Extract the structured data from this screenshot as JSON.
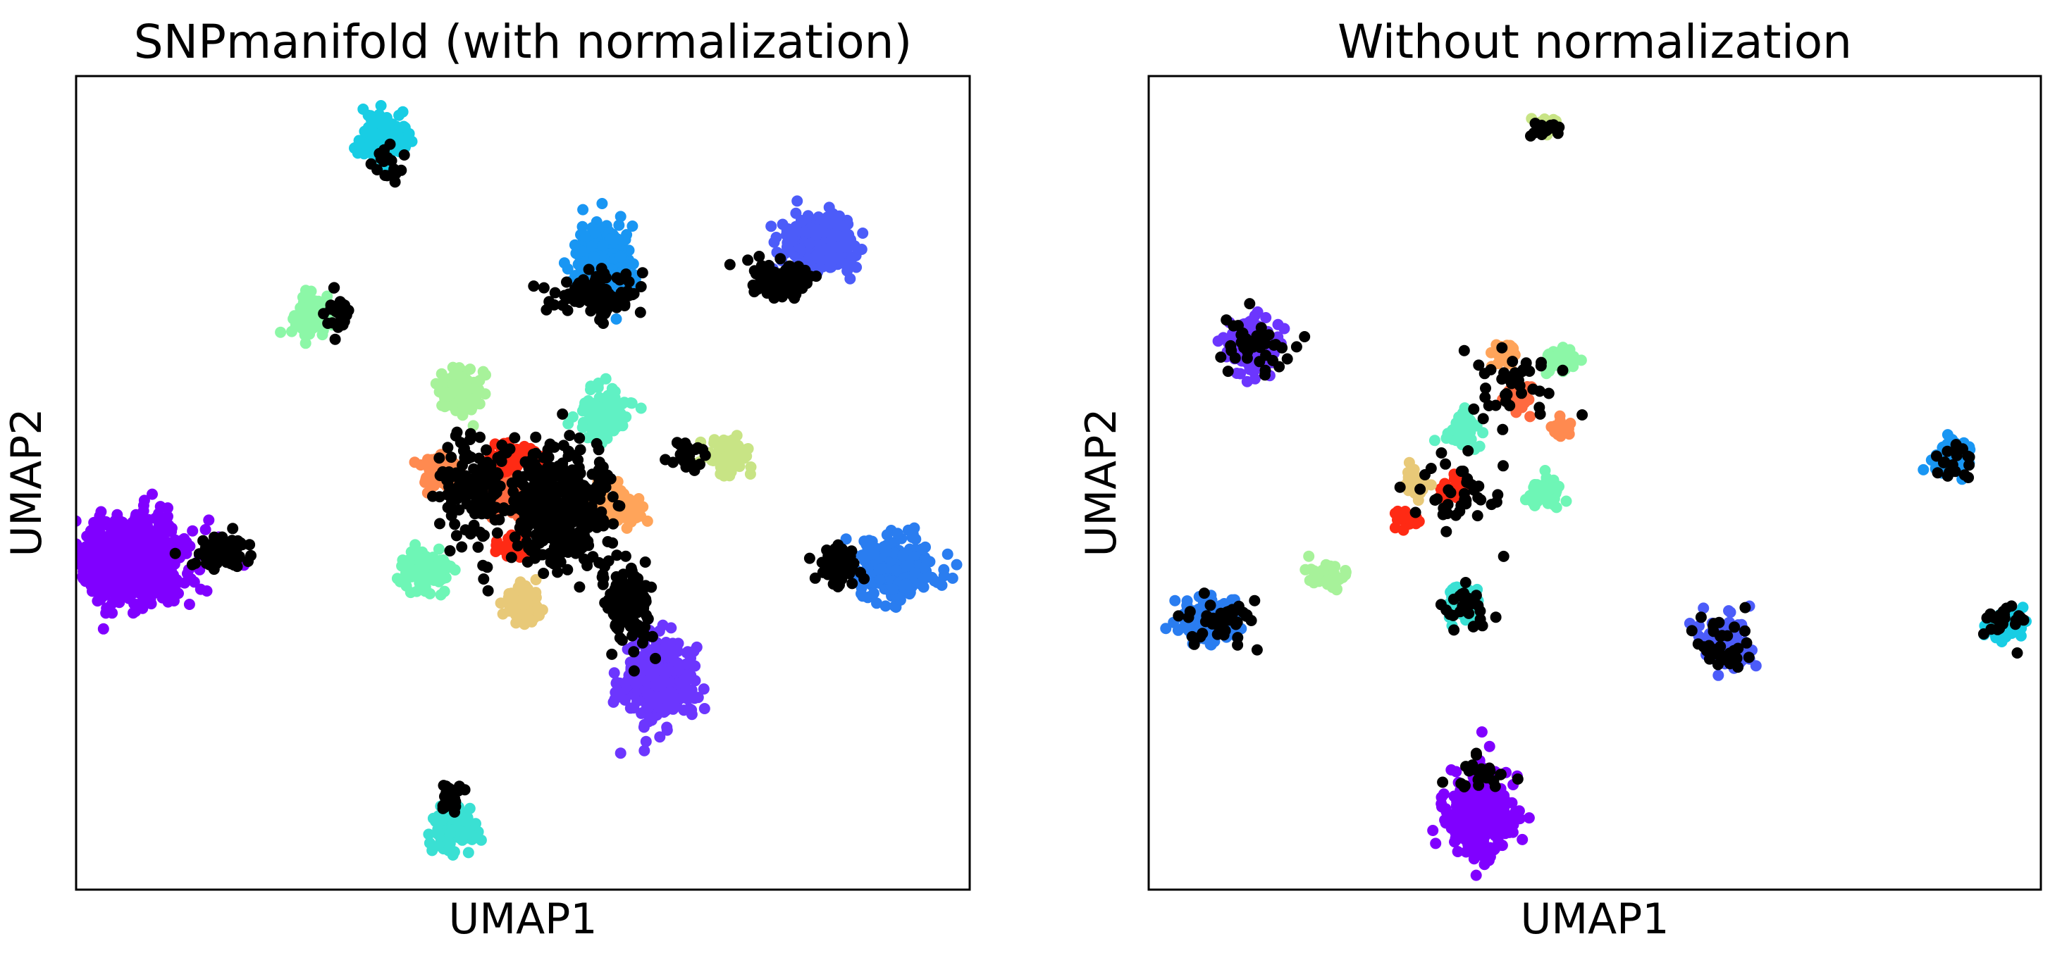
{
  "chart_data": [
    {
      "type": "scatter",
      "title": "SNPmanifold (with normalization)",
      "xlabel": "UMAP1",
      "ylabel": "UMAP2",
      "xlim": [
        0,
        100
      ],
      "ylim": [
        0,
        100
      ],
      "xticks": "none",
      "yticks": "none",
      "grid": false,
      "legend": "none",
      "clusters": [
        {
          "color": "#8000ff",
          "x": 6.5,
          "y": 40.5,
          "rx": 6.0,
          "ry": 5.0,
          "n": 700
        },
        {
          "color": "#6c36fe",
          "x": 65.0,
          "y": 25.5,
          "rx": 4.0,
          "ry": 5.0,
          "n": 300
        },
        {
          "color": "#1996f3",
          "x": 59.0,
          "y": 77.5,
          "rx": 3.0,
          "ry": 4.5,
          "n": 250
        },
        {
          "color": "#4c5cf9",
          "x": 83.0,
          "y": 79.5,
          "rx": 4.0,
          "ry": 3.5,
          "n": 250
        },
        {
          "color": "#2a7df0",
          "x": 91.5,
          "y": 39.5,
          "rx": 4.5,
          "ry": 3.5,
          "n": 250
        },
        {
          "color": "#18cde4",
          "x": 34.5,
          "y": 92.5,
          "rx": 3.0,
          "ry": 3.0,
          "n": 150
        },
        {
          "color": "#3ae0d3",
          "x": 42.0,
          "y": 7.5,
          "rx": 2.5,
          "ry": 3.0,
          "n": 120
        },
        {
          "color": "#8cf7a7",
          "x": 26.5,
          "y": 70.5,
          "rx": 2.2,
          "ry": 2.5,
          "n": 90
        },
        {
          "color": "#a7f29a",
          "x": 43.0,
          "y": 61.5,
          "rx": 2.5,
          "ry": 2.8,
          "n": 120
        },
        {
          "color": "#60f1c4",
          "x": 59.0,
          "y": 58.5,
          "rx": 2.8,
          "ry": 3.0,
          "n": 140
        },
        {
          "color": "#c8e485",
          "x": 73.0,
          "y": 53.5,
          "rx": 2.5,
          "ry": 2.0,
          "n": 90
        },
        {
          "color": "#6ef6b6",
          "x": 39.0,
          "y": 39.5,
          "rx": 2.5,
          "ry": 2.5,
          "n": 100
        },
        {
          "color": "#e8c978",
          "x": 50.0,
          "y": 35.0,
          "rx": 2.0,
          "ry": 2.5,
          "n": 90
        },
        {
          "color": "#ff8a50",
          "x": 40.5,
          "y": 51.5,
          "rx": 2.0,
          "ry": 2.0,
          "n": 70
        },
        {
          "color": "#ff6a40",
          "x": 48.0,
          "y": 48.5,
          "rx": 2.5,
          "ry": 2.0,
          "n": 90
        },
        {
          "color": "#ffa45a",
          "x": 60.5,
          "y": 47.0,
          "rx": 2.5,
          "ry": 2.0,
          "n": 90
        },
        {
          "color": "#ff2a14",
          "x": 49.0,
          "y": 53.0,
          "rx": 2.5,
          "ry": 2.0,
          "n": 70
        },
        {
          "color": "#ff2a14",
          "x": 49.0,
          "y": 42.0,
          "rx": 2.0,
          "ry": 1.5,
          "n": 40
        },
        {
          "color": "#000000",
          "x": 54.0,
          "y": 47.0,
          "rx": 5.0,
          "ry": 7.0,
          "n": 450
        },
        {
          "color": "#000000",
          "x": 62.0,
          "y": 35.0,
          "rx": 3.0,
          "ry": 5.0,
          "n": 120
        },
        {
          "color": "#000000",
          "x": 58.0,
          "y": 73.0,
          "rx": 5.0,
          "ry": 3.0,
          "n": 100
        },
        {
          "color": "#000000",
          "x": 79.0,
          "y": 75.0,
          "rx": 3.5,
          "ry": 2.5,
          "n": 90
        },
        {
          "color": "#000000",
          "x": 85.0,
          "y": 40.0,
          "rx": 2.5,
          "ry": 2.5,
          "n": 80
        },
        {
          "color": "#000000",
          "x": 16.5,
          "y": 41.5,
          "rx": 3.0,
          "ry": 2.0,
          "n": 70
        },
        {
          "color": "#000000",
          "x": 42.0,
          "y": 11.5,
          "rx": 1.5,
          "ry": 2.0,
          "n": 25
        },
        {
          "color": "#000000",
          "x": 29.5,
          "y": 71.0,
          "rx": 2.0,
          "ry": 3.0,
          "n": 25
        },
        {
          "color": "#000000",
          "x": 35.0,
          "y": 89.5,
          "rx": 1.5,
          "ry": 2.5,
          "n": 20
        },
        {
          "color": "#000000",
          "x": 68.5,
          "y": 53.5,
          "rx": 2.5,
          "ry": 2.0,
          "n": 25
        },
        {
          "color": "#000000",
          "x": 44.5,
          "y": 49.0,
          "rx": 4.0,
          "ry": 7.0,
          "n": 140
        }
      ]
    },
    {
      "type": "scatter",
      "title": "Without normalization",
      "xlabel": "UMAP1",
      "ylabel": "UMAP2",
      "xlim": [
        0,
        100
      ],
      "ylim": [
        0,
        100
      ],
      "xticks": "none",
      "yticks": "none",
      "grid": false,
      "legend": "none",
      "clusters": [
        {
          "color": "#c8e485",
          "x": 44.5,
          "y": 94.0,
          "rx": 1.2,
          "ry": 1.2,
          "n": 30
        },
        {
          "color": "#6c36fe",
          "x": 11.5,
          "y": 67.0,
          "rx": 3.0,
          "ry": 3.0,
          "n": 200
        },
        {
          "color": "#8cf7a7",
          "x": 46.0,
          "y": 65.0,
          "rx": 2.0,
          "ry": 1.5,
          "n": 50
        },
        {
          "color": "#ffa45a",
          "x": 40.0,
          "y": 66.0,
          "rx": 1.5,
          "ry": 1.5,
          "n": 30
        },
        {
          "color": "#ff6a40",
          "x": 41.5,
          "y": 60.5,
          "rx": 1.5,
          "ry": 1.5,
          "n": 30
        },
        {
          "color": "#ff8a50",
          "x": 46.0,
          "y": 56.5,
          "rx": 1.0,
          "ry": 1.2,
          "n": 20
        },
        {
          "color": "#60f1c4",
          "x": 35.5,
          "y": 56.5,
          "rx": 2.0,
          "ry": 2.0,
          "n": 60
        },
        {
          "color": "#ff2a14",
          "x": 34.5,
          "y": 49.0,
          "rx": 1.5,
          "ry": 1.5,
          "n": 30
        },
        {
          "color": "#e8c978",
          "x": 30.0,
          "y": 50.0,
          "rx": 1.5,
          "ry": 1.5,
          "n": 30
        },
        {
          "color": "#ff2a14",
          "x": 29.0,
          "y": 45.5,
          "rx": 1.2,
          "ry": 1.5,
          "n": 30
        },
        {
          "color": "#6ef6b6",
          "x": 44.5,
          "y": 48.5,
          "rx": 1.8,
          "ry": 2.0,
          "n": 50
        },
        {
          "color": "#1996f3",
          "x": 90.0,
          "y": 53.5,
          "rx": 2.0,
          "ry": 2.5,
          "n": 80
        },
        {
          "color": "#a7f29a",
          "x": 20.0,
          "y": 38.5,
          "rx": 2.0,
          "ry": 1.5,
          "n": 40
        },
        {
          "color": "#3ae0d3",
          "x": 35.0,
          "y": 35.0,
          "rx": 2.0,
          "ry": 2.5,
          "n": 60
        },
        {
          "color": "#2a7df0",
          "x": 7.0,
          "y": 33.0,
          "rx": 3.5,
          "ry": 2.8,
          "n": 150
        },
        {
          "color": "#4c5cf9",
          "x": 64.5,
          "y": 30.5,
          "rx": 2.5,
          "ry": 3.0,
          "n": 100
        },
        {
          "color": "#18cde4",
          "x": 96.0,
          "y": 32.5,
          "rx": 2.0,
          "ry": 1.8,
          "n": 60
        },
        {
          "color": "#8000ff",
          "x": 37.0,
          "y": 9.5,
          "rx": 3.8,
          "ry": 5.0,
          "n": 320
        },
        {
          "color": "#000000",
          "x": 41.0,
          "y": 62.0,
          "rx": 6.0,
          "ry": 5.0,
          "n": 40
        },
        {
          "color": "#000000",
          "x": 35.0,
          "y": 49.0,
          "rx": 5.0,
          "ry": 5.0,
          "n": 40
        },
        {
          "color": "#000000",
          "x": 12.0,
          "y": 67.0,
          "rx": 3.5,
          "ry": 3.5,
          "n": 40
        },
        {
          "color": "#000000",
          "x": 8.0,
          "y": 33.0,
          "rx": 4.5,
          "ry": 3.5,
          "n": 40
        },
        {
          "color": "#000000",
          "x": 64.5,
          "y": 30.0,
          "rx": 3.5,
          "ry": 3.5,
          "n": 40
        },
        {
          "color": "#000000",
          "x": 95.0,
          "y": 33.0,
          "rx": 3.0,
          "ry": 2.0,
          "n": 25
        },
        {
          "color": "#000000",
          "x": 37.0,
          "y": 14.0,
          "rx": 3.5,
          "ry": 2.5,
          "n": 25
        },
        {
          "color": "#000000",
          "x": 35.5,
          "y": 34.5,
          "rx": 2.5,
          "ry": 2.8,
          "n": 25
        },
        {
          "color": "#000000",
          "x": 90.0,
          "y": 52.5,
          "rx": 2.5,
          "ry": 2.5,
          "n": 20
        },
        {
          "color": "#000000",
          "x": 44.5,
          "y": 93.5,
          "rx": 1.5,
          "ry": 1.2,
          "n": 15
        }
      ]
    }
  ]
}
